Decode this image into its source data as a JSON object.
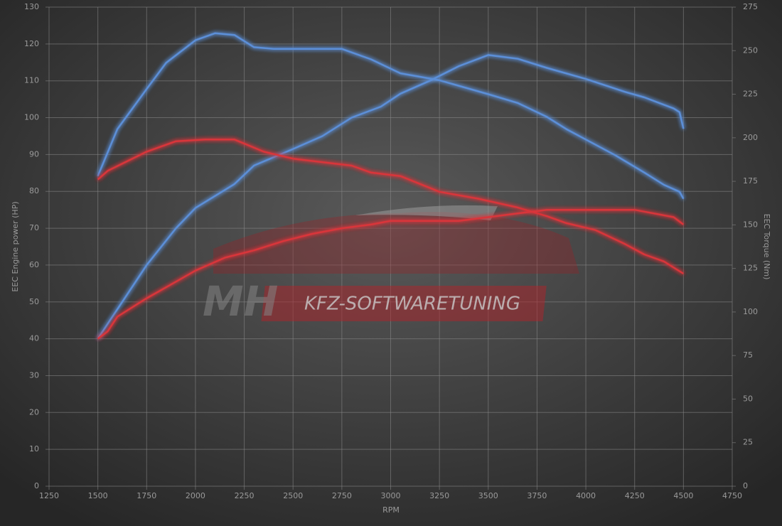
{
  "chart_data": {
    "type": "line",
    "xlabel": "RPM",
    "ylabel": "EEC Engine power (HP)",
    "y2label": "EEC Torque (Nm)",
    "watermark": [
      "MH",
      "KFZ-SOFTWARETUNING"
    ],
    "xlim": [
      1250,
      4750
    ],
    "xticks": [
      1250,
      1500,
      1750,
      2000,
      2250,
      2500,
      2750,
      3000,
      3250,
      3500,
      3750,
      4000,
      4250,
      4500,
      4750
    ],
    "ylim": [
      0,
      130
    ],
    "yticks": [
      0,
      10,
      20,
      30,
      40,
      50,
      60,
      70,
      80,
      90,
      100,
      110,
      120,
      130
    ],
    "y2lim": [
      0,
      275
    ],
    "y2ticks": [
      0,
      25,
      50,
      75,
      100,
      125,
      150,
      175,
      200,
      225,
      250,
      275
    ],
    "grid": true,
    "series": [
      {
        "color": "#5b8fd8",
        "axis": "y2",
        "x": [
          1500,
          1600,
          1750,
          1850,
          2000,
          2100,
          2200,
          2300,
          2400,
          2600,
          2750,
          2900,
          3050,
          3250,
          3500,
          3650,
          3800,
          3900,
          4000,
          4150,
          4300,
          4400,
          4480,
          4500
        ],
        "values": [
          178,
          205,
          228,
          243,
          256,
          260,
          259,
          252,
          251,
          251,
          251,
          245,
          237,
          233,
          225,
          220,
          212,
          205,
          199,
          190,
          180,
          173,
          169,
          165
        ]
      },
      {
        "color": "#5b8fd8",
        "axis": "y",
        "x": [
          1500,
          1600,
          1750,
          1900,
          2000,
          2200,
          2300,
          2500,
          2650,
          2800,
          2950,
          3050,
          3200,
          3350,
          3500,
          3650,
          3800,
          4000,
          4200,
          4300,
          4450,
          4480,
          4500
        ],
        "values": [
          40,
          48,
          60,
          70,
          75.5,
          82,
          87,
          91.5,
          95,
          100,
          103,
          106.5,
          110,
          114,
          117,
          116,
          113.5,
          110.5,
          107,
          105.5,
          102.5,
          101.5,
          97
        ]
      },
      {
        "color": "#d9353a",
        "axis": "y2",
        "x": [
          1500,
          1550,
          1750,
          1900,
          2050,
          2200,
          2350,
          2500,
          2650,
          2800,
          2900,
          3050,
          3250,
          3450,
          3650,
          3800,
          3900,
          4050,
          4200,
          4300,
          4400,
          4500
        ],
        "values": [
          176,
          181,
          192,
          198,
          199,
          199,
          192,
          188,
          186,
          184,
          180,
          178,
          169,
          165,
          160,
          155,
          151,
          147,
          139,
          133,
          129,
          122
        ]
      },
      {
        "color": "#d9353a",
        "axis": "y",
        "x": [
          1500,
          1550,
          1600,
          1750,
          1900,
          2000,
          2150,
          2300,
          2450,
          2600,
          2750,
          2900,
          3000,
          3200,
          3350,
          3500,
          3650,
          3800,
          4000,
          4250,
          4350,
          4450,
          4500
        ],
        "values": [
          40,
          42,
          46,
          51,
          55.5,
          58.5,
          62,
          64,
          66.5,
          68.5,
          70,
          71,
          72,
          72,
          72,
          73,
          74,
          75,
          75,
          75,
          74,
          73,
          71
        ]
      }
    ]
  }
}
